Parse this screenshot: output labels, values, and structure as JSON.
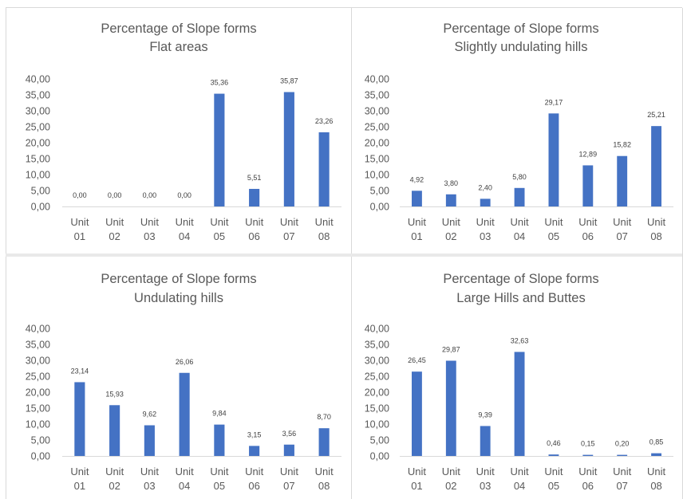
{
  "chart_data": [
    {
      "type": "bar",
      "title": "Percentage of Slope forms",
      "subtitle": "Flat areas",
      "categories": [
        [
          "Unit",
          "01"
        ],
        [
          "Unit",
          "02"
        ],
        [
          "Unit",
          "03"
        ],
        [
          "Unit",
          "04"
        ],
        [
          "Unit",
          "05"
        ],
        [
          "Unit",
          "06"
        ],
        [
          "Unit",
          "07"
        ],
        [
          "Unit",
          "08"
        ]
      ],
      "values": [
        0.0,
        0.0,
        0.0,
        0.0,
        35.36,
        5.51,
        35.87,
        23.26
      ],
      "labels": [
        "0,00",
        "0,00",
        "0,00",
        "0,00",
        "35,36",
        "5,51",
        "35,87",
        "23,26"
      ],
      "yticks": [
        "0,00",
        "5,00",
        "10,00",
        "15,00",
        "20,00",
        "25,00",
        "30,00",
        "35,00",
        "40,00"
      ],
      "ylim": [
        0,
        40
      ],
      "grid": false,
      "color": "#4472c4"
    },
    {
      "type": "bar",
      "title": "Percentage of Slope forms",
      "subtitle": "Slightly undulating hills",
      "categories": [
        [
          "Unit",
          "01"
        ],
        [
          "Unit",
          "02"
        ],
        [
          "Unit",
          "03"
        ],
        [
          "Unit",
          "04"
        ],
        [
          "Unit",
          "05"
        ],
        [
          "Unit",
          "06"
        ],
        [
          "Unit",
          "07"
        ],
        [
          "Unit",
          "08"
        ]
      ],
      "values": [
        4.92,
        3.8,
        2.4,
        5.8,
        29.17,
        12.89,
        15.82,
        25.21
      ],
      "labels": [
        "4,92",
        "3,80",
        "2,40",
        "5,80",
        "29,17",
        "12,89",
        "15,82",
        "25,21"
      ],
      "yticks": [
        "0,00",
        "5,00",
        "10,00",
        "15,00",
        "20,00",
        "25,00",
        "30,00",
        "35,00",
        "40,00"
      ],
      "ylim": [
        0,
        40
      ],
      "grid": false,
      "color": "#4472c4"
    },
    {
      "type": "bar",
      "title": "Percentage of Slope forms",
      "subtitle": "Undulating hills",
      "categories": [
        [
          "Unit",
          "01"
        ],
        [
          "Unit",
          "02"
        ],
        [
          "Unit",
          "03"
        ],
        [
          "Unit",
          "04"
        ],
        [
          "Unit",
          "05"
        ],
        [
          "Unit",
          "06"
        ],
        [
          "Unit",
          "07"
        ],
        [
          "Unit",
          "08"
        ]
      ],
      "values": [
        23.14,
        15.93,
        9.62,
        26.06,
        9.84,
        3.15,
        3.56,
        8.7
      ],
      "labels": [
        "23,14",
        "15,93",
        "9,62",
        "26,06",
        "9,84",
        "3,15",
        "3,56",
        "8,70"
      ],
      "yticks": [
        "0,00",
        "5,00",
        "10,00",
        "15,00",
        "20,00",
        "25,00",
        "30,00",
        "35,00",
        "40,00"
      ],
      "ylim": [
        0,
        40
      ],
      "grid": false,
      "color": "#4472c4"
    },
    {
      "type": "bar",
      "title": "Percentage of Slope forms",
      "subtitle": "Large Hills and Buttes",
      "categories": [
        [
          "Unit",
          "01"
        ],
        [
          "Unit",
          "02"
        ],
        [
          "Unit",
          "03"
        ],
        [
          "Unit",
          "04"
        ],
        [
          "Unit",
          "05"
        ],
        [
          "Unit",
          "06"
        ],
        [
          "Unit",
          "07"
        ],
        [
          "Unit",
          "08"
        ]
      ],
      "values": [
        26.45,
        29.87,
        9.39,
        32.63,
        0.46,
        0.15,
        0.2,
        0.85
      ],
      "labels": [
        "26,45",
        "29,87",
        "9,39",
        "32,63",
        "0,46",
        "0,15",
        "0,20",
        "0,85"
      ],
      "yticks": [
        "0,00",
        "5,00",
        "10,00",
        "15,00",
        "20,00",
        "25,00",
        "30,00",
        "35,00",
        "40,00"
      ],
      "ylim": [
        0,
        40
      ],
      "grid": false,
      "color": "#4472c4"
    }
  ]
}
